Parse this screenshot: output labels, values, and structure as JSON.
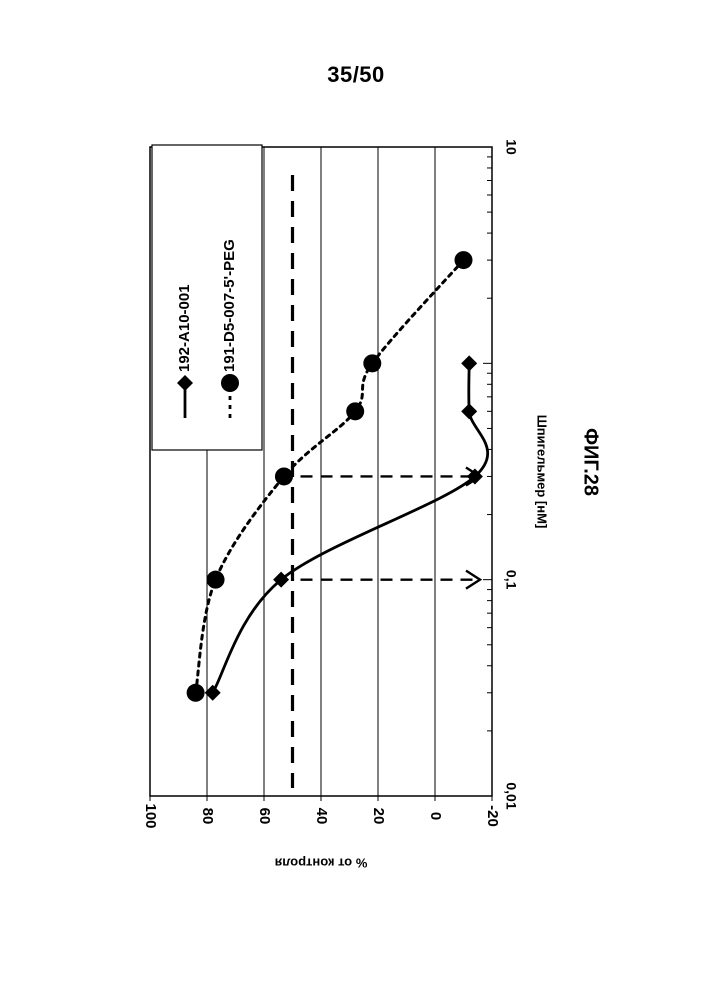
{
  "page": {
    "number_label": "35/50"
  },
  "figure": {
    "caption": "ФИГ.28"
  },
  "chart_data": {
    "type": "line",
    "title": "",
    "xlabel": "Шпигельмер [нМ]",
    "ylabel": "% от контроля",
    "x_scale": "log",
    "xlim": [
      0.01,
      10
    ],
    "ylim": [
      -20,
      100
    ],
    "x_tick_labels": [
      "0,01",
      "0,1",
      "10"
    ],
    "y_ticks": [
      100,
      80,
      60,
      40,
      20,
      0,
      -20
    ],
    "grid": "horizontal",
    "legend_position": "top-left",
    "orientation": "rotated-90-clockwise",
    "series": [
      {
        "name": "192-A10-001",
        "marker": "diamond",
        "line_style": "solid",
        "color": "#000000",
        "x": [
          0.03,
          0.1,
          0.3,
          0.6,
          1.0
        ],
        "y": [
          78,
          54,
          -14,
          -12,
          -12
        ]
      },
      {
        "name": "191-D5-007-5'-PEG",
        "marker": "circle",
        "line_style": "dotted",
        "color": "#000000",
        "x": [
          0.03,
          0.1,
          0.3,
          0.6,
          1.0,
          3.0
        ],
        "y": [
          84,
          77,
          53,
          28,
          22,
          -10
        ]
      }
    ],
    "reference_line": {
      "y": 50,
      "style": "dashed"
    },
    "annotations": [
      {
        "type": "arrow",
        "x": 0.1,
        "from_y": 50,
        "to_y": -20
      },
      {
        "type": "arrow",
        "x": 0.3,
        "from_y": 50,
        "to_y": -20
      }
    ]
  }
}
